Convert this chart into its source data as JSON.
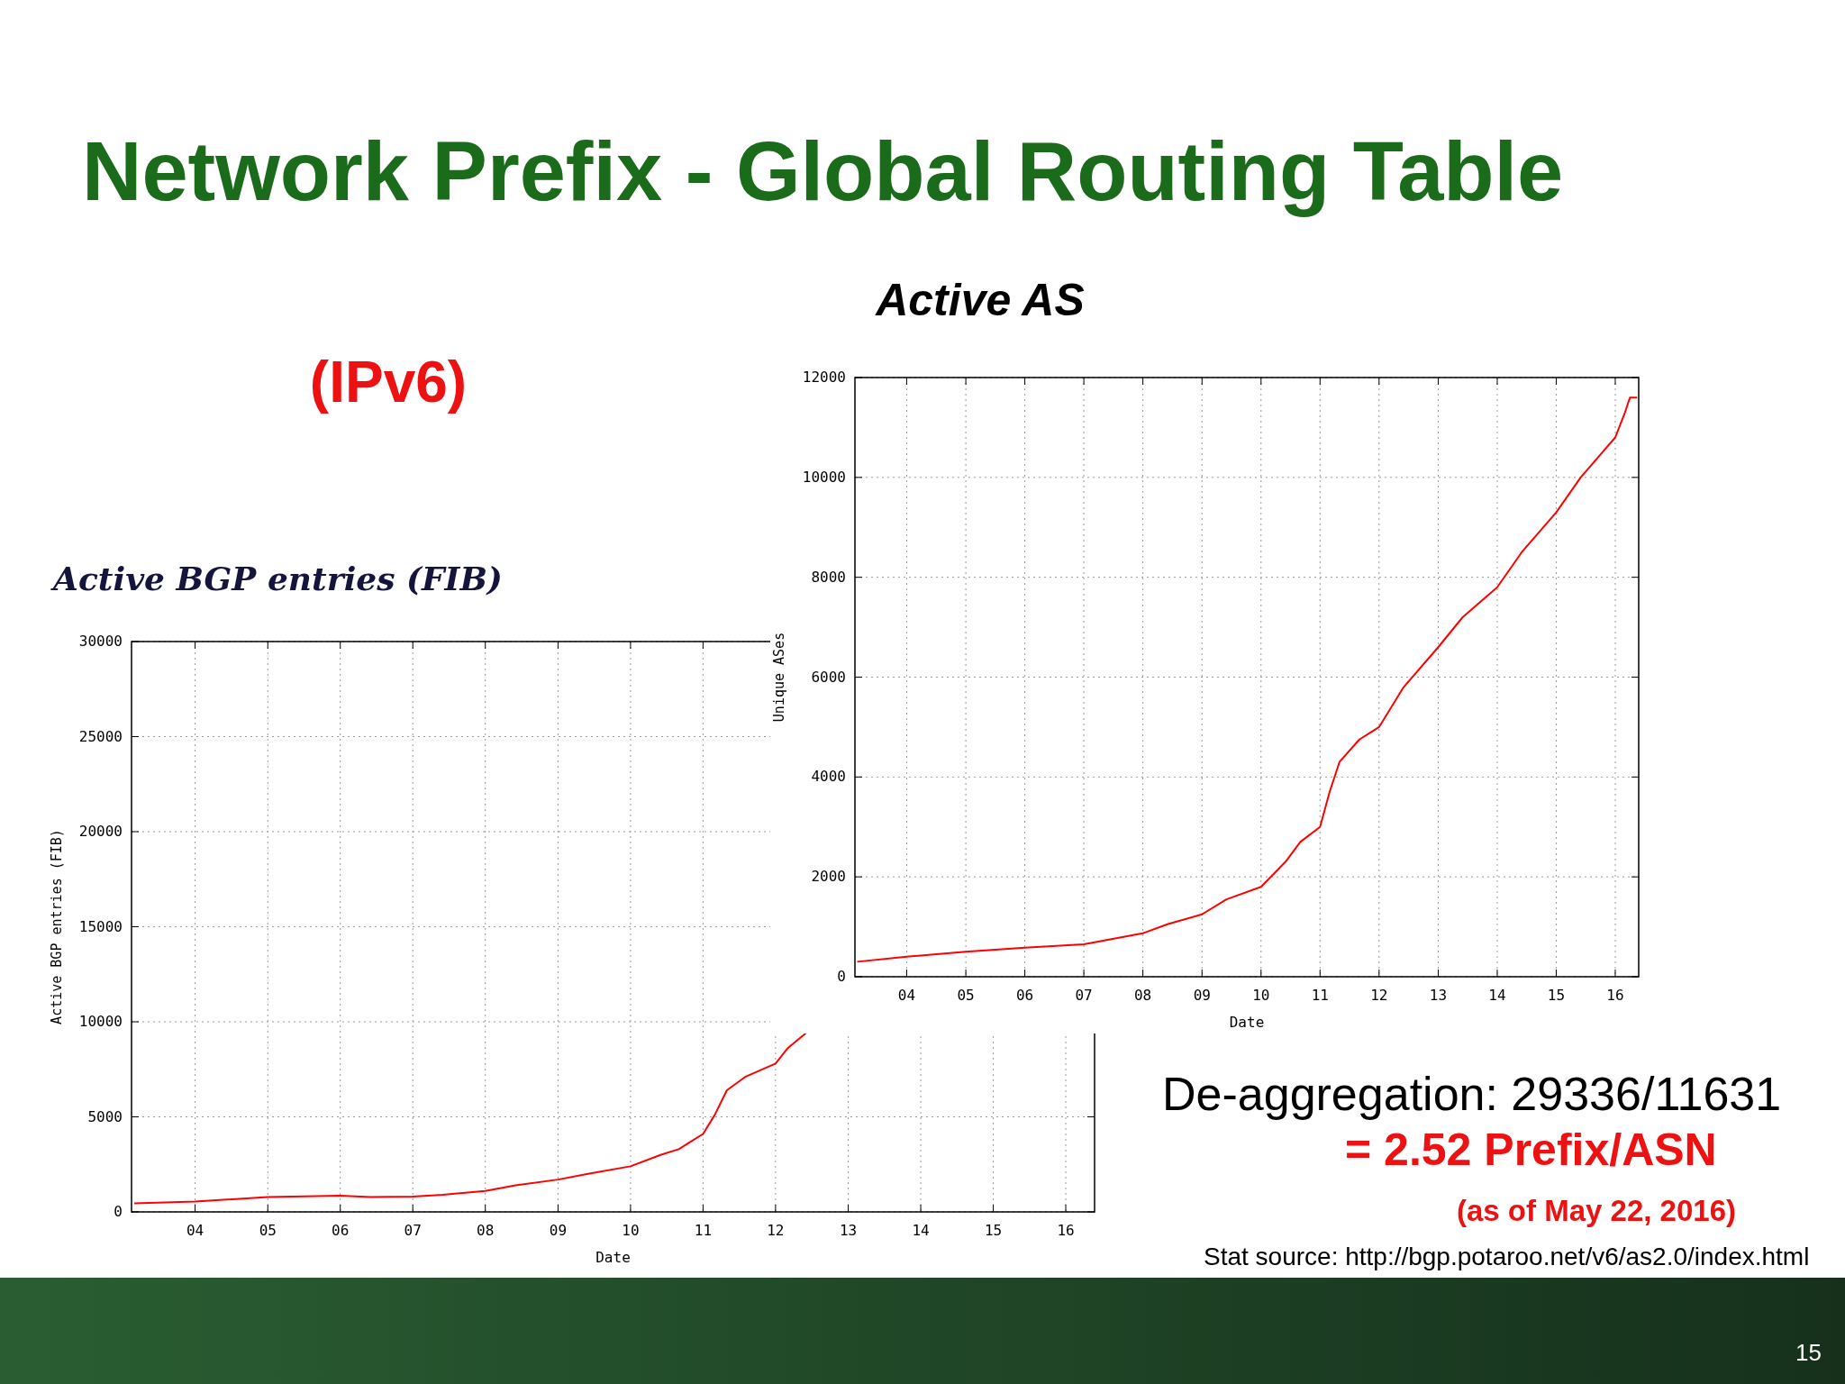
{
  "chart_data": [
    {
      "type": "line",
      "title": "Active BGP entries (FIB)",
      "xlabel": "Date",
      "ylabel": "Active BGP entries (FIB)",
      "annotations": [
        "Network Prefix - Global Routing Table",
        "(IPv6)",
        "15"
      ],
      "x": [
        "2003-03",
        "2004",
        "2005",
        "2006",
        "2006-06",
        "2007",
        "2007-06",
        "2008",
        "2008-06",
        "2009",
        "2009-06",
        "2010",
        "2010-06",
        "2010-09",
        "2011",
        "2011-03",
        "2011-05",
        "2011-08",
        "2012",
        "2012-03",
        "2012-06"
      ],
      "series": [
        {
          "color": "#ff0000",
          "values": [
            450,
            550,
            780,
            850,
            780,
            800,
            900,
            1100,
            1400,
            1700,
            2000,
            2400,
            3000,
            3300,
            4100,
            5100,
            6400,
            7100,
            7800,
            8600,
            9400
          ]
        }
      ],
      "xlim": [
        "2003-02-15",
        "2016-05-25"
      ],
      "xticks": [
        {
          "value": "2004",
          "label": "04"
        },
        {
          "value": "2005",
          "label": "05"
        },
        {
          "value": "2006",
          "label": "06"
        },
        {
          "value": "2007",
          "label": "07"
        },
        {
          "value": "2008",
          "label": "08"
        },
        {
          "value": "2009",
          "label": "09"
        },
        {
          "value": "2010",
          "label": "10"
        },
        {
          "value": "2011",
          "label": "11"
        },
        {
          "value": "2012",
          "label": "12"
        },
        {
          "value": "2013",
          "label": "13"
        },
        {
          "value": "2014",
          "label": "14"
        },
        {
          "value": "2015",
          "label": "15"
        },
        {
          "value": "2016",
          "label": "16"
        }
      ],
      "ylim": [
        0,
        30000
      ],
      "yticks": [
        0,
        5000,
        10000,
        15000,
        20000,
        25000,
        30000
      ],
      "grid": true
    },
    {
      "type": "line",
      "title": "Active AS",
      "xlabel": "Date",
      "ylabel": "Unique ASes",
      "annotations": [
        "De-aggregation: 29336/11631",
        "= 2.52 Prefix/ASN",
        "(as of May 22, 2016)",
        "Stat source: http://bgp.potaroo.net/v6/as2.0/index.html"
      ],
      "x": [
        "2003-03",
        "2004",
        "2005",
        "2006",
        "2007",
        "2008",
        "2008-06",
        "2009",
        "2009-06",
        "2010",
        "2010-06",
        "2010-09",
        "2011",
        "2011-03",
        "2011-05",
        "2011-09",
        "2012",
        "2012-06",
        "2013",
        "2013-06",
        "2014",
        "2014-06",
        "2015",
        "2015-06",
        "2016",
        "2016-03",
        "2016-04",
        "2016-05-15"
      ],
      "series": [
        {
          "color": "#ff0000",
          "values": [
            300,
            400,
            500,
            580,
            650,
            870,
            1050,
            1250,
            1550,
            1800,
            2300,
            2700,
            3000,
            3700,
            4300,
            4750,
            5000,
            5800,
            6600,
            7200,
            7800,
            8500,
            9300,
            10000,
            10800,
            11300,
            11600,
            11600
          ]
        }
      ],
      "xlim": [
        "2003-02-15",
        "2016-05-25"
      ],
      "xticks": [
        {
          "value": "2004",
          "label": "04"
        },
        {
          "value": "2005",
          "label": "05"
        },
        {
          "value": "2006",
          "label": "06"
        },
        {
          "value": "2007",
          "label": "07"
        },
        {
          "value": "2008",
          "label": "08"
        },
        {
          "value": "2009",
          "label": "09"
        },
        {
          "value": "2010",
          "label": "10"
        },
        {
          "value": "2011",
          "label": "11"
        },
        {
          "value": "2012",
          "label": "12"
        },
        {
          "value": "2013",
          "label": "13"
        },
        {
          "value": "2014",
          "label": "14"
        },
        {
          "value": "2015",
          "label": "15"
        },
        {
          "value": "2016",
          "label": "16"
        }
      ],
      "ylim": [
        0,
        12000
      ],
      "yticks": [
        0,
        2000,
        4000,
        6000,
        8000,
        10000,
        12000
      ],
      "grid": true
    }
  ]
}
